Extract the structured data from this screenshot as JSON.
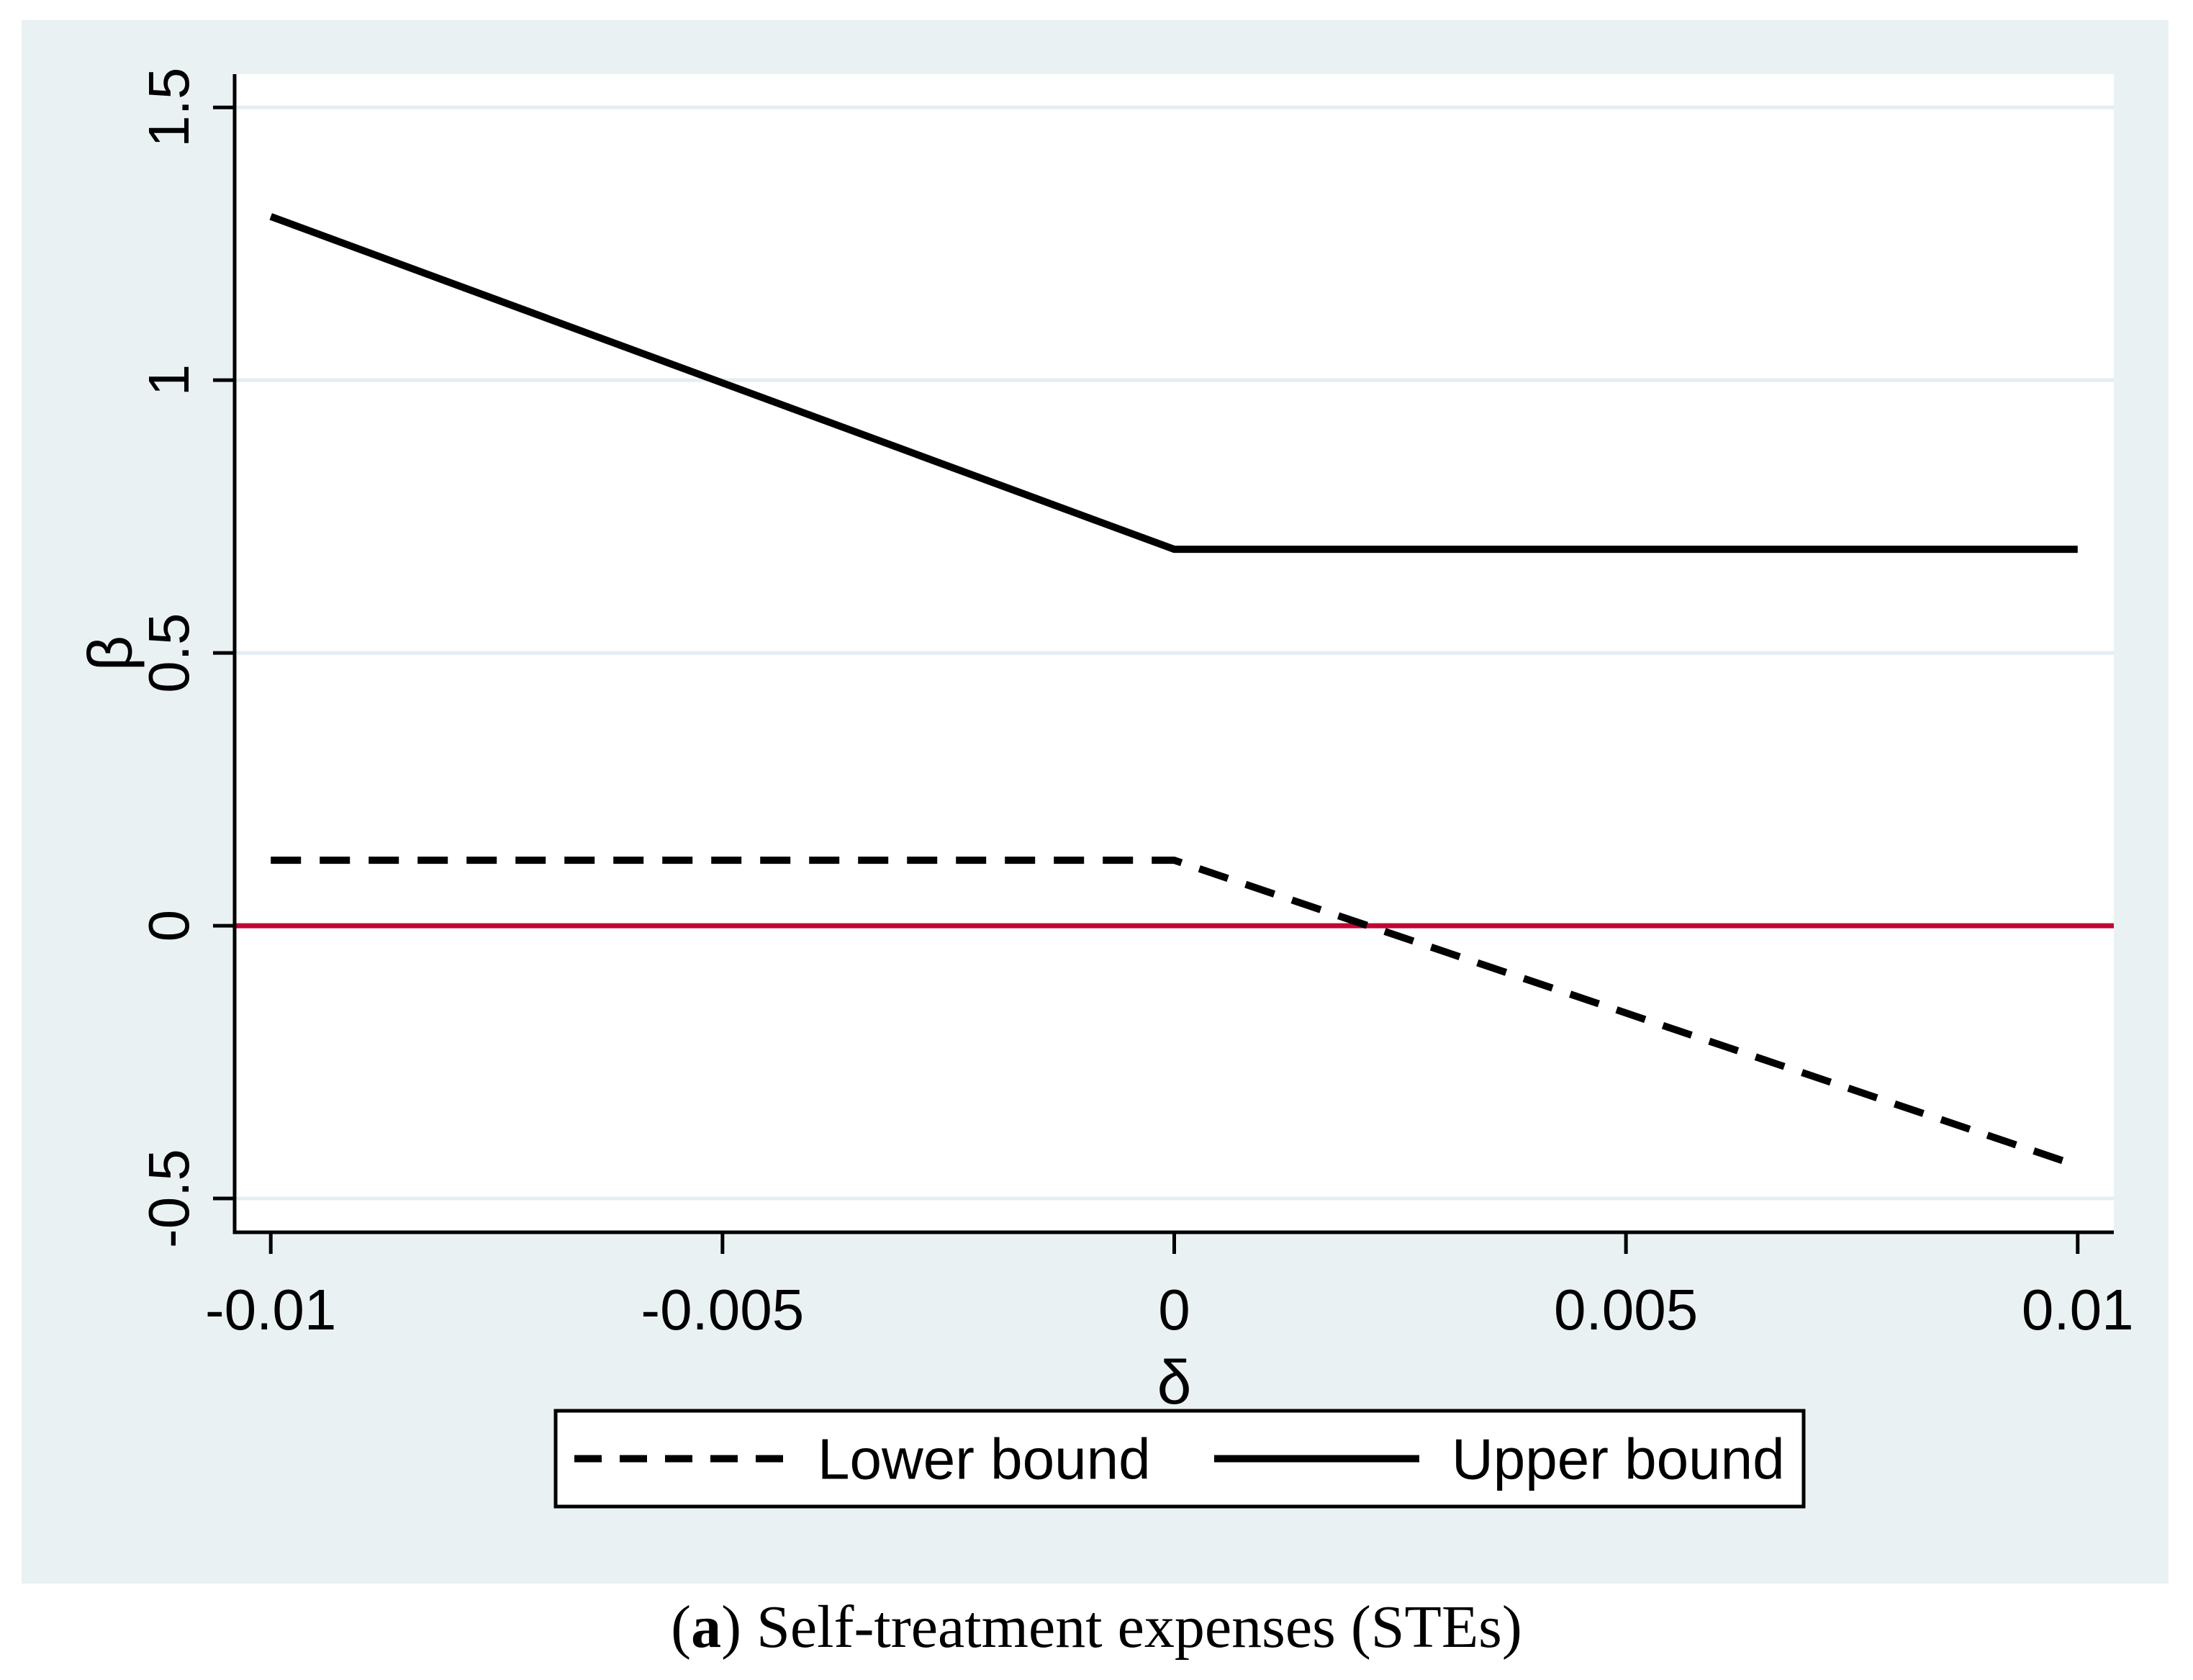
{
  "figure": {
    "background_color": "#eaf1f3",
    "plot_background_color": "#ffffff",
    "grid_color": "#e4edf0",
    "axis_color": "#000000",
    "caption": {
      "paren_open": "(",
      "letter": "a",
      "paren_close": ")",
      "text": " Self-treatment expenses (STEs)"
    }
  },
  "chart_data": {
    "type": "line",
    "title": "",
    "xlabel": "δ",
    "ylabel": "β",
    "xlim": [
      -0.0104,
      0.0104
    ],
    "ylim": [
      -0.562,
      1.561
    ],
    "grid": "horizontal",
    "x_ticks": [
      -0.01,
      -0.005,
      0,
      0.005,
      0.01
    ],
    "x_tick_labels": [
      "-0.01",
      "-0.005",
      "0",
      "0.005",
      "0.01"
    ],
    "y_ticks": [
      -0.5,
      0,
      0.5,
      1,
      1.5
    ],
    "y_tick_labels": [
      "-0.5",
      "0",
      "0.5",
      "1",
      "1.5"
    ],
    "series": [
      {
        "name": "Lower bound",
        "style": "dashed",
        "color": "#000000",
        "points": [
          [
            -0.01,
            0.12
          ],
          [
            0,
            0.12
          ],
          [
            0.01,
            -0.44
          ]
        ]
      },
      {
        "name": "Upper bound",
        "style": "solid",
        "color": "#000000",
        "points": [
          [
            -0.01,
            1.3
          ],
          [
            0,
            0.69
          ],
          [
            0.01,
            0.69
          ]
        ]
      }
    ],
    "reference_line": {
      "y": 0,
      "color": "#c10534"
    },
    "legend": {
      "position": "bottom-center",
      "entries": [
        "Lower bound",
        "Upper bound"
      ]
    }
  }
}
